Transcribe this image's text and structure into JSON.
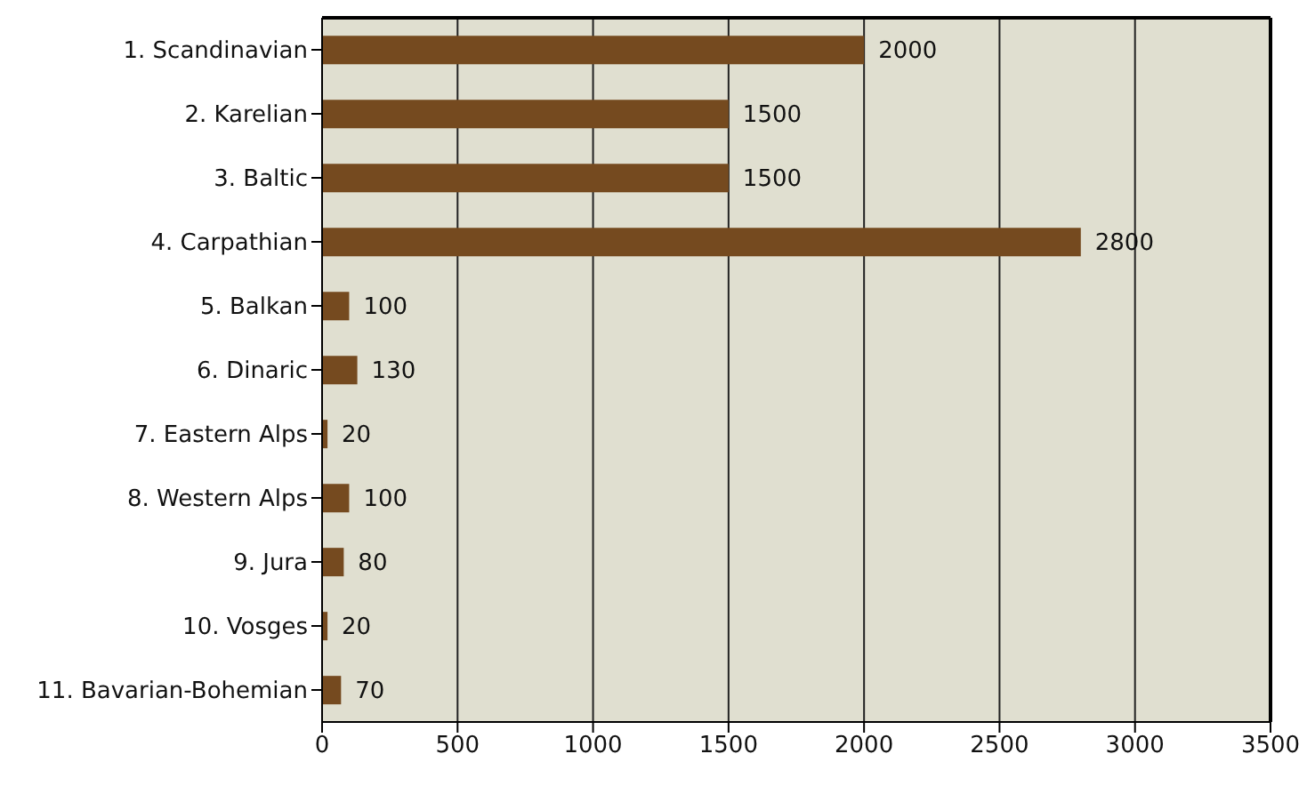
{
  "chart_data": {
    "type": "bar",
    "orientation": "horizontal",
    "categories": [
      "1. Scandinavian",
      "2. Karelian",
      "3. Baltic",
      "4. Carpathian",
      "5. Balkan",
      "6. Dinaric",
      "7. Eastern Alps",
      "8. Western Alps",
      "9. Jura",
      "10. Vosges",
      "11. Bavarian-Bohemian"
    ],
    "values": [
      2000,
      1500,
      1500,
      2800,
      100,
      130,
      20,
      100,
      80,
      20,
      70
    ],
    "color": "#754a1f",
    "xlim": [
      0,
      3500
    ],
    "xticks": [
      0,
      500,
      1000,
      1500,
      2000,
      2500,
      3000,
      3500
    ],
    "grid": "x",
    "data_labels": true
  }
}
